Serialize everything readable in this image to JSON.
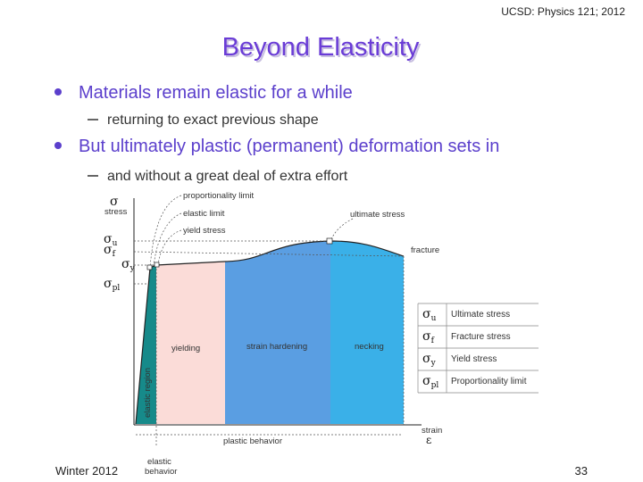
{
  "header": {
    "course": "UCSD: Physics 121; 2012",
    "title": "Beyond Elasticity"
  },
  "bullets": [
    {
      "text": "Materials remain elastic for a while",
      "sub": "returning to exact previous shape"
    },
    {
      "text": "But ultimately plastic (permanent) deformation sets in",
      "sub": "and without a great deal of extra effort"
    }
  ],
  "diagram": {
    "axis_y": {
      "symbol": "σ",
      "label": "stress"
    },
    "axis_x": {
      "label": "strain",
      "symbol": "ε"
    },
    "y_marks": [
      {
        "symbol": "σ",
        "sub": "u"
      },
      {
        "symbol": "σ",
        "sub": "f"
      },
      {
        "symbol": "σ",
        "sub": "y"
      },
      {
        "symbol": "σ",
        "sub": "pl"
      }
    ],
    "callouts": [
      "proportionality limit",
      "elastic limit",
      "yield stress",
      "ultimate stress",
      "fracture"
    ],
    "regions": [
      "elastic region",
      "yielding",
      "strain hardening",
      "necking"
    ],
    "spans": {
      "plastic": "plastic behavior",
      "elastic": [
        "elastic",
        "behavior"
      ]
    },
    "legend": [
      {
        "symbol": "σ",
        "sub": "u",
        "label": "Ultimate stress"
      },
      {
        "symbol": "σ",
        "sub": "f",
        "label": "Fracture stress"
      },
      {
        "symbol": "σ",
        "sub": "y",
        "label": "Yield stress"
      },
      {
        "symbol": "σ",
        "sub": "pl",
        "label": "Proportionality limit"
      }
    ]
  },
  "footer": {
    "left": "Winter 2012",
    "page": "33"
  }
}
